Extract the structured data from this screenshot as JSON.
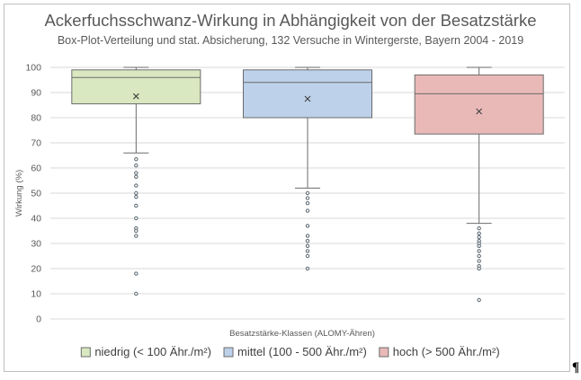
{
  "chart_data": {
    "type": "boxplot",
    "title": "Ackerfuchsschwanz-Wirkung in Abhängigkeit von der Besatzstärke",
    "subtitle": "Box-Plot-Verteilung und stat. Absicherung, 132 Versuche in Wintergerste, Bayern 2004 - 2019",
    "xlabel": "Besatzstärke-Klassen  (ALOMY-Ähren)",
    "ylabel": "Wirkung (%)",
    "ylim": [
      0,
      100
    ],
    "yticks": [
      "0",
      "10",
      "20",
      "30",
      "40",
      "50",
      "60",
      "70",
      "80",
      "90",
      "100"
    ],
    "grid": true,
    "legend_position": "bottom",
    "series": [
      {
        "name": "niedrig (< 100 Ähr./m²)",
        "fill": "#d9e8c0",
        "stroke": "#6b6b6b",
        "whisker_low": 66,
        "q1": 85.5,
        "median": 96,
        "q3": 99,
        "whisker_high": 100,
        "mean": 88.5,
        "outliers": [
          63.5,
          61,
          58,
          56.5,
          53,
          50,
          48.5,
          45,
          40,
          36,
          35,
          33,
          18,
          10
        ]
      },
      {
        "name": "mittel (100 - 500 Ähr./m²)",
        "fill": "#bdd1ea",
        "stroke": "#6b6b6b",
        "whisker_low": 52,
        "q1": 80,
        "median": 94,
        "q3": 99,
        "whisker_high": 100,
        "mean": 87.5,
        "outliers": [
          50,
          48,
          46,
          43,
          37,
          33,
          31,
          29,
          27,
          25,
          20
        ]
      },
      {
        "name": "hoch (> 500 Ähr./m²)",
        "fill": "#e9b9b8",
        "stroke": "#6b6b6b",
        "whisker_low": 38,
        "q1": 73.5,
        "median": 89.5,
        "q3": 97,
        "whisker_high": 100,
        "mean": 82.5,
        "outliers": [
          36,
          34,
          32.5,
          31,
          30,
          29,
          27,
          25,
          23,
          21,
          20,
          7.5
        ]
      }
    ]
  },
  "page": {
    "pilcrow": "¶"
  }
}
